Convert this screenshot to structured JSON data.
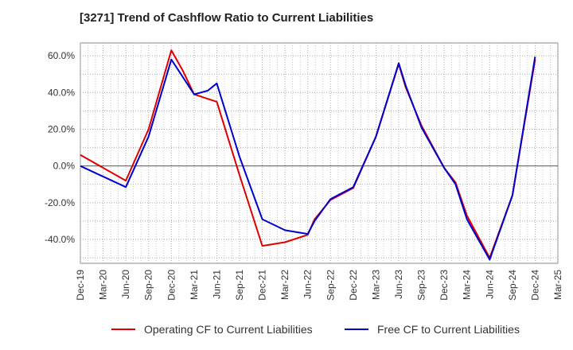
{
  "chart_data": {
    "type": "line",
    "title": "[3271]  Trend of Cashflow Ratio to Current Liabilities",
    "xlabel": "",
    "ylabel": "",
    "categories": [
      "Dec-19",
      "Mar-20",
      "Jun-20",
      "Sep-20",
      "Dec-20",
      "Mar-21",
      "Jun-21",
      "Sep-21",
      "Dec-21",
      "Mar-22",
      "Jun-22",
      "Sep-22",
      "Dec-22",
      "Mar-23",
      "Jun-23",
      "Sep-23",
      "Dec-23",
      "Mar-24",
      "Jun-24",
      "Sep-24",
      "Dec-24",
      "Mar-25"
    ],
    "y_ticks": [
      60,
      40,
      20,
      0,
      -20,
      -40
    ],
    "y_tick_labels": [
      "60.0%",
      "40.0%",
      "20.0%",
      "0.0%",
      "-20.0%",
      "-40.0%"
    ],
    "ylim": [
      -53,
      67
    ],
    "grid": true,
    "legend_position": "bottom",
    "series": [
      {
        "name": "Operating CF to Current Liabilities",
        "color": "#dd0000",
        "x": [
          0,
          2,
          3,
          4,
          4.5,
          5,
          6,
          7,
          8,
          9,
          10,
          10.3,
          11,
          12,
          13,
          14,
          14.3,
          15,
          16,
          16.5,
          17,
          18,
          19,
          20
        ],
        "values": [
          6,
          -8,
          20,
          63,
          52,
          39,
          35,
          -5,
          -43.5,
          -41.5,
          -37.5,
          -29,
          -18.5,
          -12,
          16,
          55.5,
          43,
          22,
          -1,
          -9,
          -27,
          -50,
          -16,
          58
        ]
      },
      {
        "name": "Free CF to Current Liabilities",
        "color": "#0000cc",
        "x": [
          0,
          2,
          3,
          4,
          5,
          5.6,
          6,
          7,
          8,
          9,
          10,
          10.3,
          11,
          12,
          13,
          14,
          14.3,
          15,
          16,
          16.5,
          17,
          18,
          19,
          20
        ],
        "values": [
          0,
          -11.5,
          16,
          58,
          39,
          41,
          45,
          5,
          -29,
          -35,
          -37,
          -30,
          -18,
          -11.5,
          16,
          56,
          44,
          21,
          -1,
          -10,
          -29,
          -51,
          -16,
          59.5
        ]
      }
    ]
  }
}
